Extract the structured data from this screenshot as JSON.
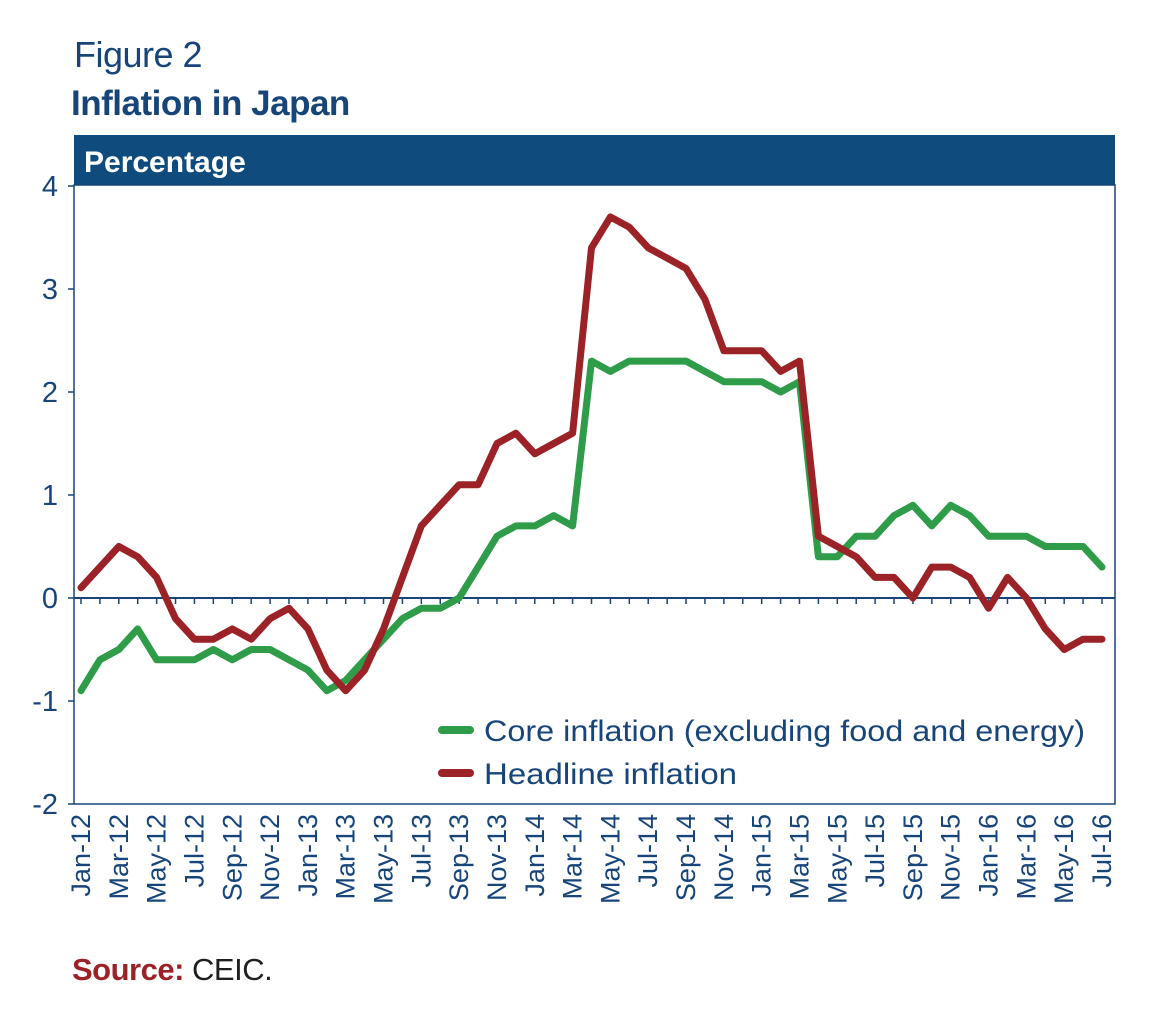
{
  "figure": {
    "label": "Figure 2",
    "title": "Inflation in Japan"
  },
  "chart_data": {
    "type": "line",
    "title": "Inflation in Japan",
    "ylabel": "Percentage",
    "xlabel": "",
    "ylim": [
      -2,
      4
    ],
    "yticks": [
      -2,
      -1,
      0,
      1,
      2,
      3,
      4
    ],
    "grid": false,
    "legend_position": "bottom-right",
    "categories": [
      "Jan-12",
      "Feb-12",
      "Mar-12",
      "Apr-12",
      "May-12",
      "Jun-12",
      "Jul-12",
      "Aug-12",
      "Sep-12",
      "Oct-12",
      "Nov-12",
      "Dec-12",
      "Jan-13",
      "Feb-13",
      "Mar-13",
      "Apr-13",
      "May-13",
      "Jun-13",
      "Jul-13",
      "Aug-13",
      "Sep-13",
      "Oct-13",
      "Nov-13",
      "Dec-13",
      "Jan-14",
      "Feb-14",
      "Mar-14",
      "Apr-14",
      "May-14",
      "Jun-14",
      "Jul-14",
      "Aug-14",
      "Sep-14",
      "Oct-14",
      "Nov-14",
      "Dec-14",
      "Jan-15",
      "Feb-15",
      "Mar-15",
      "Apr-15",
      "May-15",
      "Jun-15",
      "Jul-15",
      "Aug-15",
      "Sep-15",
      "Oct-15",
      "Nov-15",
      "Dec-15",
      "Jan-16",
      "Feb-16",
      "Mar-16",
      "Apr-16",
      "May-16",
      "Jun-16",
      "Jul-16"
    ],
    "tick_labels": [
      "Jan-12",
      "Mar-12",
      "May-12",
      "Jul-12",
      "Sep-12",
      "Nov-12",
      "Jan-13",
      "Mar-13",
      "May-13",
      "Jul-13",
      "Sep-13",
      "Nov-13",
      "Jan-14",
      "Mar-14",
      "May-14",
      "Jul-14",
      "Sep-14",
      "Nov-14",
      "Jan-15",
      "Mar-15",
      "May-15",
      "Jul-15",
      "Sep-15",
      "Nov-15",
      "Jan-16",
      "Mar-16",
      "May-16",
      "Jul-16"
    ],
    "series": [
      {
        "name": "Core inflation (excluding food and energy)",
        "color": "#2e9c49",
        "values": [
          -0.9,
          -0.6,
          -0.5,
          -0.3,
          -0.6,
          -0.6,
          -0.6,
          -0.5,
          -0.6,
          -0.5,
          -0.5,
          -0.6,
          -0.7,
          -0.9,
          -0.8,
          -0.6,
          -0.4,
          -0.2,
          -0.1,
          -0.1,
          0.0,
          0.3,
          0.6,
          0.7,
          0.7,
          0.8,
          0.7,
          2.3,
          2.2,
          2.3,
          2.3,
          2.3,
          2.3,
          2.2,
          2.1,
          2.1,
          2.1,
          2.0,
          2.1,
          0.4,
          0.4,
          0.6,
          0.6,
          0.8,
          0.9,
          0.7,
          0.9,
          0.8,
          0.6,
          0.6,
          0.6,
          0.5,
          0.5,
          0.5,
          0.3
        ]
      },
      {
        "name": "Headline inflation",
        "color": "#9b2226",
        "values": [
          0.1,
          0.3,
          0.5,
          0.4,
          0.2,
          -0.2,
          -0.4,
          -0.4,
          -0.3,
          -0.4,
          -0.2,
          -0.1,
          -0.3,
          -0.7,
          -0.9,
          -0.7,
          -0.3,
          0.2,
          0.7,
          0.9,
          1.1,
          1.1,
          1.5,
          1.6,
          1.4,
          1.5,
          1.6,
          3.4,
          3.7,
          3.6,
          3.4,
          3.3,
          3.2,
          2.9,
          2.4,
          2.4,
          2.4,
          2.2,
          2.3,
          0.6,
          0.5,
          0.4,
          0.2,
          0.2,
          0.0,
          0.3,
          0.3,
          0.2,
          -0.1,
          0.2,
          0.0,
          -0.3,
          -0.5,
          -0.4,
          -0.4
        ]
      }
    ]
  },
  "source": {
    "label": "Source:",
    "text": "CEIC."
  }
}
